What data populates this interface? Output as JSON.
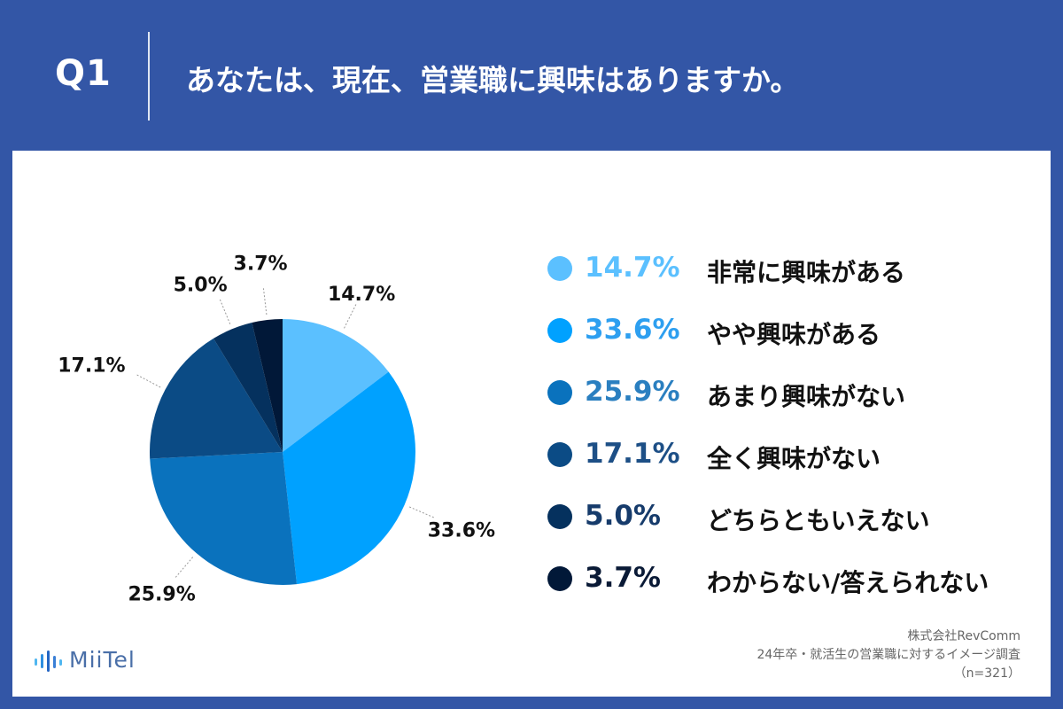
{
  "header": {
    "question_number": "Q1",
    "question_text": "あなたは、現在、営業職に興味はありますか。"
  },
  "chart_data": {
    "type": "pie",
    "unit": "%",
    "slices": [
      {
        "label": "非常に興味がある",
        "value": 14.7,
        "value_text": "14.7%",
        "color": "#5bc0ff"
      },
      {
        "label": "やや興味がある",
        "value": 33.6,
        "value_text": "33.6%",
        "color": "#00a1ff"
      },
      {
        "label": "あまり興味がない",
        "value": 25.9,
        "value_text": "25.9%",
        "color": "#0a72bd"
      },
      {
        "label": "全く興味がない",
        "value": 17.1,
        "value_text": "17.1%",
        "color": "#0b4b85"
      },
      {
        "label": "どちらともいえない",
        "value": 5.0,
        "value_text": "5.0%",
        "color": "#05315e"
      },
      {
        "label": "わからない/答えられない",
        "value": 3.7,
        "value_text": "3.7%",
        "color": "#011838"
      }
    ],
    "legend_placement": "right"
  },
  "legend_text_colors": [
    "#5bc0ff",
    "#2d9ff0",
    "#2a7fc0",
    "#1d4f86",
    "#163b6b",
    "#0a1a36"
  ],
  "logo": {
    "text": "MiiTel"
  },
  "source": {
    "company": "株式会社RevComm",
    "survey": "24年卒・就活生の営業職に対するイメージ調査",
    "sample": "（n=321）"
  }
}
